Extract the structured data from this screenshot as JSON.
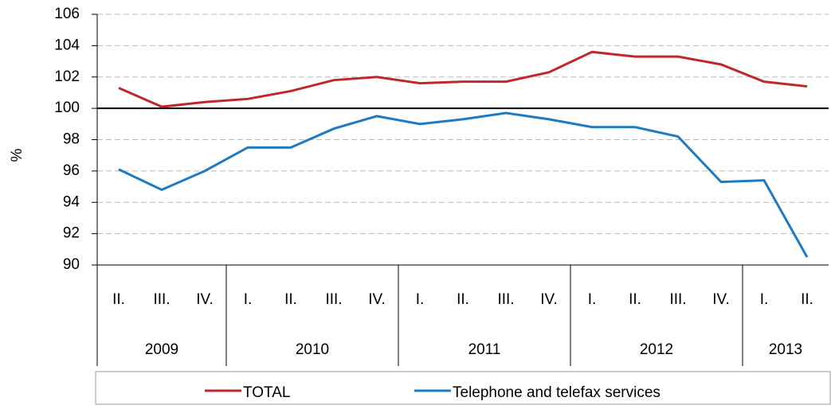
{
  "chart_data": {
    "type": "line",
    "ylabel": "%",
    "categories": [
      "II.",
      "III.",
      "IV.",
      "I.",
      "II.",
      "III.",
      "IV.",
      "I.",
      "II.",
      "III.",
      "IV.",
      "I.",
      "II.",
      "III.",
      "IV.",
      "I.",
      "II."
    ],
    "year_groups": [
      {
        "name": "2009",
        "size": 3
      },
      {
        "name": "2010",
        "size": 4
      },
      {
        "name": "2011",
        "size": 4
      },
      {
        "name": "2012",
        "size": 4
      },
      {
        "name": "2013",
        "size": 2
      }
    ],
    "series": [
      {
        "name": "TOTAL",
        "color": "#c0272d",
        "values": [
          101.3,
          100.1,
          100.4,
          100.6,
          101.1,
          101.8,
          102.0,
          101.6,
          101.7,
          101.7,
          102.3,
          103.6,
          103.3,
          103.3,
          102.8,
          101.7,
          101.4
        ]
      },
      {
        "name": "Telephone and telefax services",
        "color": "#1f7bbf",
        "values": [
          96.1,
          94.8,
          96.0,
          97.5,
          97.5,
          98.7,
          99.5,
          99.0,
          99.3,
          99.7,
          99.3,
          98.8,
          98.8,
          98.2,
          95.3,
          95.4,
          90.5
        ]
      }
    ],
    "ylim": [
      90,
      106
    ],
    "yticks": [
      90,
      92,
      94,
      96,
      98,
      100,
      102,
      104,
      106
    ],
    "reference_line": 100,
    "grid": true,
    "legend": "bottom"
  }
}
